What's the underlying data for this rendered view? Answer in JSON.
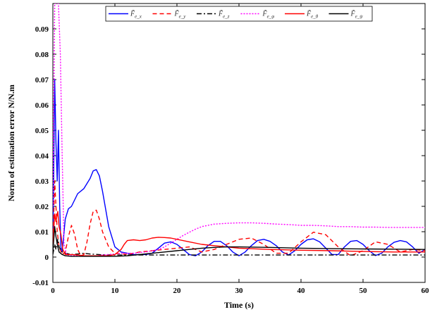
{
  "chart_data": {
    "type": "line",
    "title": "",
    "xlabel": "Time (s)",
    "ylabel": "Norm of estimation error N/N.m",
    "xlim": [
      0,
      60
    ],
    "ylim": [
      -0.01,
      0.1
    ],
    "xticks": [
      0,
      10,
      20,
      30,
      40,
      50,
      60
    ],
    "xtick_labels": [
      "0",
      "10",
      "20",
      "30",
      "40",
      "50",
      "60"
    ],
    "yticks": [
      -0.01,
      0,
      0.01,
      0.02,
      0.03,
      0.04,
      0.05,
      0.06,
      0.07,
      0.08,
      0.09
    ],
    "ytick_labels": [
      "-0.01",
      "0",
      "0.01",
      "0.02",
      "0.03",
      "0.04",
      "0.05",
      "0.06",
      "0.07",
      "0.08",
      "0.09"
    ],
    "grid": false,
    "legend_position": "top",
    "series": [
      {
        "name": "F̃e_x",
        "sub": "e_x",
        "color": "#0000ff",
        "dash": "solid",
        "x": [
          0,
          0.3,
          0.5,
          0.7,
          0.9,
          1.1,
          1.3,
          1.5,
          2,
          2.5,
          3,
          4,
          5,
          6,
          6.5,
          7,
          7.5,
          8,
          9,
          10,
          11,
          12,
          13,
          14,
          15,
          16,
          17,
          18,
          19,
          20,
          21,
          22,
          23,
          24,
          25,
          26,
          27,
          28,
          29,
          30,
          31,
          32,
          33,
          34,
          35,
          36,
          37,
          38,
          39,
          40,
          41,
          42,
          43,
          44,
          45,
          46,
          47,
          48,
          49,
          50,
          51,
          52,
          53,
          54,
          55,
          56,
          57,
          58,
          59,
          60
        ],
        "y": [
          0.002,
          0.07,
          0.045,
          0.03,
          0.05,
          0.02,
          0.004,
          0.002,
          0.015,
          0.019,
          0.02,
          0.025,
          0.027,
          0.031,
          0.034,
          0.0345,
          0.032,
          0.026,
          0.012,
          0.004,
          0.002,
          0.0015,
          0.001,
          0.001,
          0.001,
          0.0015,
          0.0035,
          0.0055,
          0.006,
          0.005,
          0.003,
          0.001,
          0.0005,
          0.002,
          0.0045,
          0.0062,
          0.0062,
          0.0045,
          0.002,
          0.0005,
          0.002,
          0.0045,
          0.0065,
          0.007,
          0.0062,
          0.0045,
          0.002,
          0.0008,
          0.0025,
          0.005,
          0.0068,
          0.0072,
          0.006,
          0.0035,
          0.001,
          0.001,
          0.004,
          0.0062,
          0.0065,
          0.005,
          0.0025,
          0.0006,
          0.0015,
          0.004,
          0.0058,
          0.0065,
          0.006,
          0.004,
          0.0015,
          0.003
        ]
      },
      {
        "name": "F̃e_y",
        "sub": "e_y",
        "color": "#ff0000",
        "dash": "6,4",
        "x": [
          0,
          0.3,
          0.5,
          0.7,
          1,
          1.5,
          2,
          2.5,
          3,
          3.5,
          4,
          4.5,
          5,
          5.5,
          6,
          6.5,
          7,
          7.5,
          8,
          9,
          10,
          12,
          14,
          16,
          18,
          20,
          22,
          24,
          26,
          28,
          30,
          32,
          34,
          36,
          38,
          40,
          42,
          44,
          46,
          48,
          50,
          52,
          54,
          56,
          58,
          60
        ],
        "y": [
          0.004,
          0.03,
          0.02,
          0.01,
          0.004,
          0.001,
          0.002,
          0.008,
          0.0125,
          0.009,
          0.003,
          0.0005,
          0.001,
          0.006,
          0.013,
          0.018,
          0.0185,
          0.015,
          0.01,
          0.004,
          0.0015,
          0.001,
          0.002,
          0.0025,
          0.003,
          0.0035,
          0.004,
          0.002,
          0.003,
          0.005,
          0.007,
          0.0075,
          0.005,
          0.0015,
          0.0015,
          0.006,
          0.0098,
          0.0088,
          0.004,
          0.0005,
          0.0025,
          0.006,
          0.005,
          0.002,
          0.003,
          0.0025
        ]
      },
      {
        "name": "F̃e_z",
        "sub": "e_z",
        "color": "#000000",
        "dash": "7,3,2,3",
        "x": [
          0,
          0.3,
          0.5,
          0.8,
          1,
          1.5,
          2,
          3,
          4,
          5,
          6,
          8,
          10,
          15,
          20,
          25,
          30,
          35,
          40,
          45,
          50,
          55,
          60
        ],
        "y": [
          0.001,
          0.005,
          0.003,
          0.007,
          0.004,
          0.002,
          0.0015,
          0.001,
          0.0012,
          0.0015,
          0.0012,
          0.0009,
          0.0008,
          0.0008,
          0.0008,
          0.0008,
          0.0008,
          0.0008,
          0.0008,
          0.0008,
          0.0008,
          0.0008,
          0.0008
        ]
      },
      {
        "name": "F̃e_φ",
        "sub": "e_φ",
        "color": "#ff00ff",
        "dash": "2,2",
        "x": [
          0,
          0.3,
          0.6,
          0.9,
          1.2,
          1.5,
          1.8,
          2.2,
          3,
          4,
          5,
          6,
          7,
          8,
          9,
          10,
          11,
          12,
          13,
          14,
          15,
          16,
          17,
          18,
          19,
          20,
          21,
          22,
          23,
          24,
          25,
          26,
          28,
          30,
          32,
          34,
          36,
          38,
          40,
          42,
          44,
          46,
          48,
          50,
          52,
          54,
          56,
          58,
          60
        ],
        "y": [
          0.02,
          0.1,
          0.1,
          0.1,
          0.08,
          0.04,
          0.005,
          0.001,
          0.0005,
          0.0005,
          0.0005,
          0.0005,
          0.0005,
          0.0008,
          0.001,
          0.0012,
          0.0015,
          0.0015,
          0.0015,
          0.0018,
          0.002,
          0.0025,
          0.003,
          0.004,
          0.0055,
          0.007,
          0.0085,
          0.0098,
          0.011,
          0.012,
          0.0125,
          0.013,
          0.0133,
          0.0135,
          0.0135,
          0.0133,
          0.013,
          0.0128,
          0.0125,
          0.0125,
          0.0123,
          0.012,
          0.012,
          0.0118,
          0.0118,
          0.0117,
          0.0117,
          0.0117,
          0.0117
        ]
      },
      {
        "name": "F̃e_θ",
        "sub": "e_θ",
        "color": "#ff0000",
        "dash": "solid",
        "x": [
          0,
          0.3,
          0.5,
          0.8,
          1,
          1.3,
          1.6,
          2,
          3,
          4,
          5,
          6,
          7,
          8,
          9,
          10,
          11,
          11.5,
          12,
          13,
          14,
          15,
          16,
          17,
          18,
          19,
          20,
          22,
          24,
          26,
          28,
          30,
          35,
          40,
          45,
          50,
          55,
          60
        ],
        "y": [
          0.005,
          0.017,
          0.014,
          0.018,
          0.012,
          0.009,
          0.003,
          0.001,
          0.001,
          0.0008,
          0.0005,
          0.0005,
          0.0005,
          0.0005,
          0.0005,
          0.001,
          0.003,
          0.005,
          0.0065,
          0.0068,
          0.0065,
          0.0068,
          0.0075,
          0.0078,
          0.0077,
          0.0075,
          0.007,
          0.006,
          0.005,
          0.0045,
          0.004,
          0.0035,
          0.003,
          0.0027,
          0.0025,
          0.0022,
          0.002,
          0.002
        ]
      },
      {
        "name": "F̃e_ψ",
        "sub": "e_ψ",
        "color": "#000000",
        "dash": "solid",
        "x": [
          0,
          0.3,
          0.5,
          0.8,
          1,
          1.5,
          2,
          3,
          4,
          5,
          6,
          8,
          10,
          12,
          14,
          16,
          18,
          20,
          22,
          24,
          26,
          28,
          30,
          35,
          40,
          45,
          50,
          55,
          60
        ],
        "y": [
          0.002,
          0.012,
          0.008,
          0.004,
          0.002,
          0.001,
          0.0005,
          0.0003,
          0.0003,
          0.0003,
          0.0003,
          0.0003,
          0.0003,
          0.0005,
          0.001,
          0.0015,
          0.002,
          0.0025,
          0.003,
          0.0035,
          0.0038,
          0.004,
          0.004,
          0.0038,
          0.0035,
          0.0033,
          0.0032,
          0.0031,
          0.003
        ]
      }
    ]
  }
}
